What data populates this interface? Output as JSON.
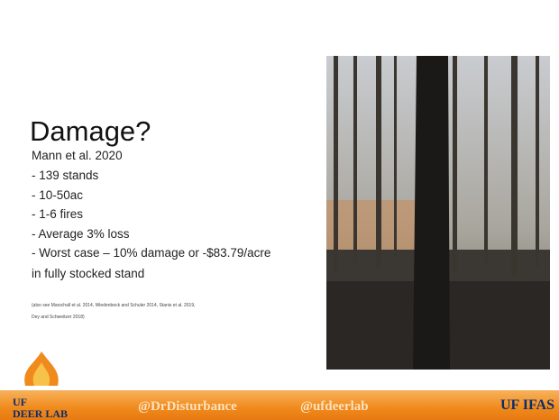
{
  "slide": {
    "title": "Damage?",
    "intro": "Mann et al. 2020",
    "bullets": [
      "- 139 stands",
      "- 10-50ac",
      "- 1-6 fires",
      "- Average 3% loss",
      "- Worst case – 10% damage or -$83.79/acre"
    ],
    "closing": "in fully stocked stand",
    "citation": [
      "(also see Marschall et al. 2014, Wiedenbeck and Schuler 2014, Stanis et al. 2019,",
      "Dey and Schweitzer 2018)"
    ]
  },
  "footer": {
    "logo": [
      "UF",
      "DEER LAB"
    ],
    "handles": [
      "@DrDisturbance",
      "@ufdeerlab"
    ],
    "brand": "UF IFAS"
  }
}
